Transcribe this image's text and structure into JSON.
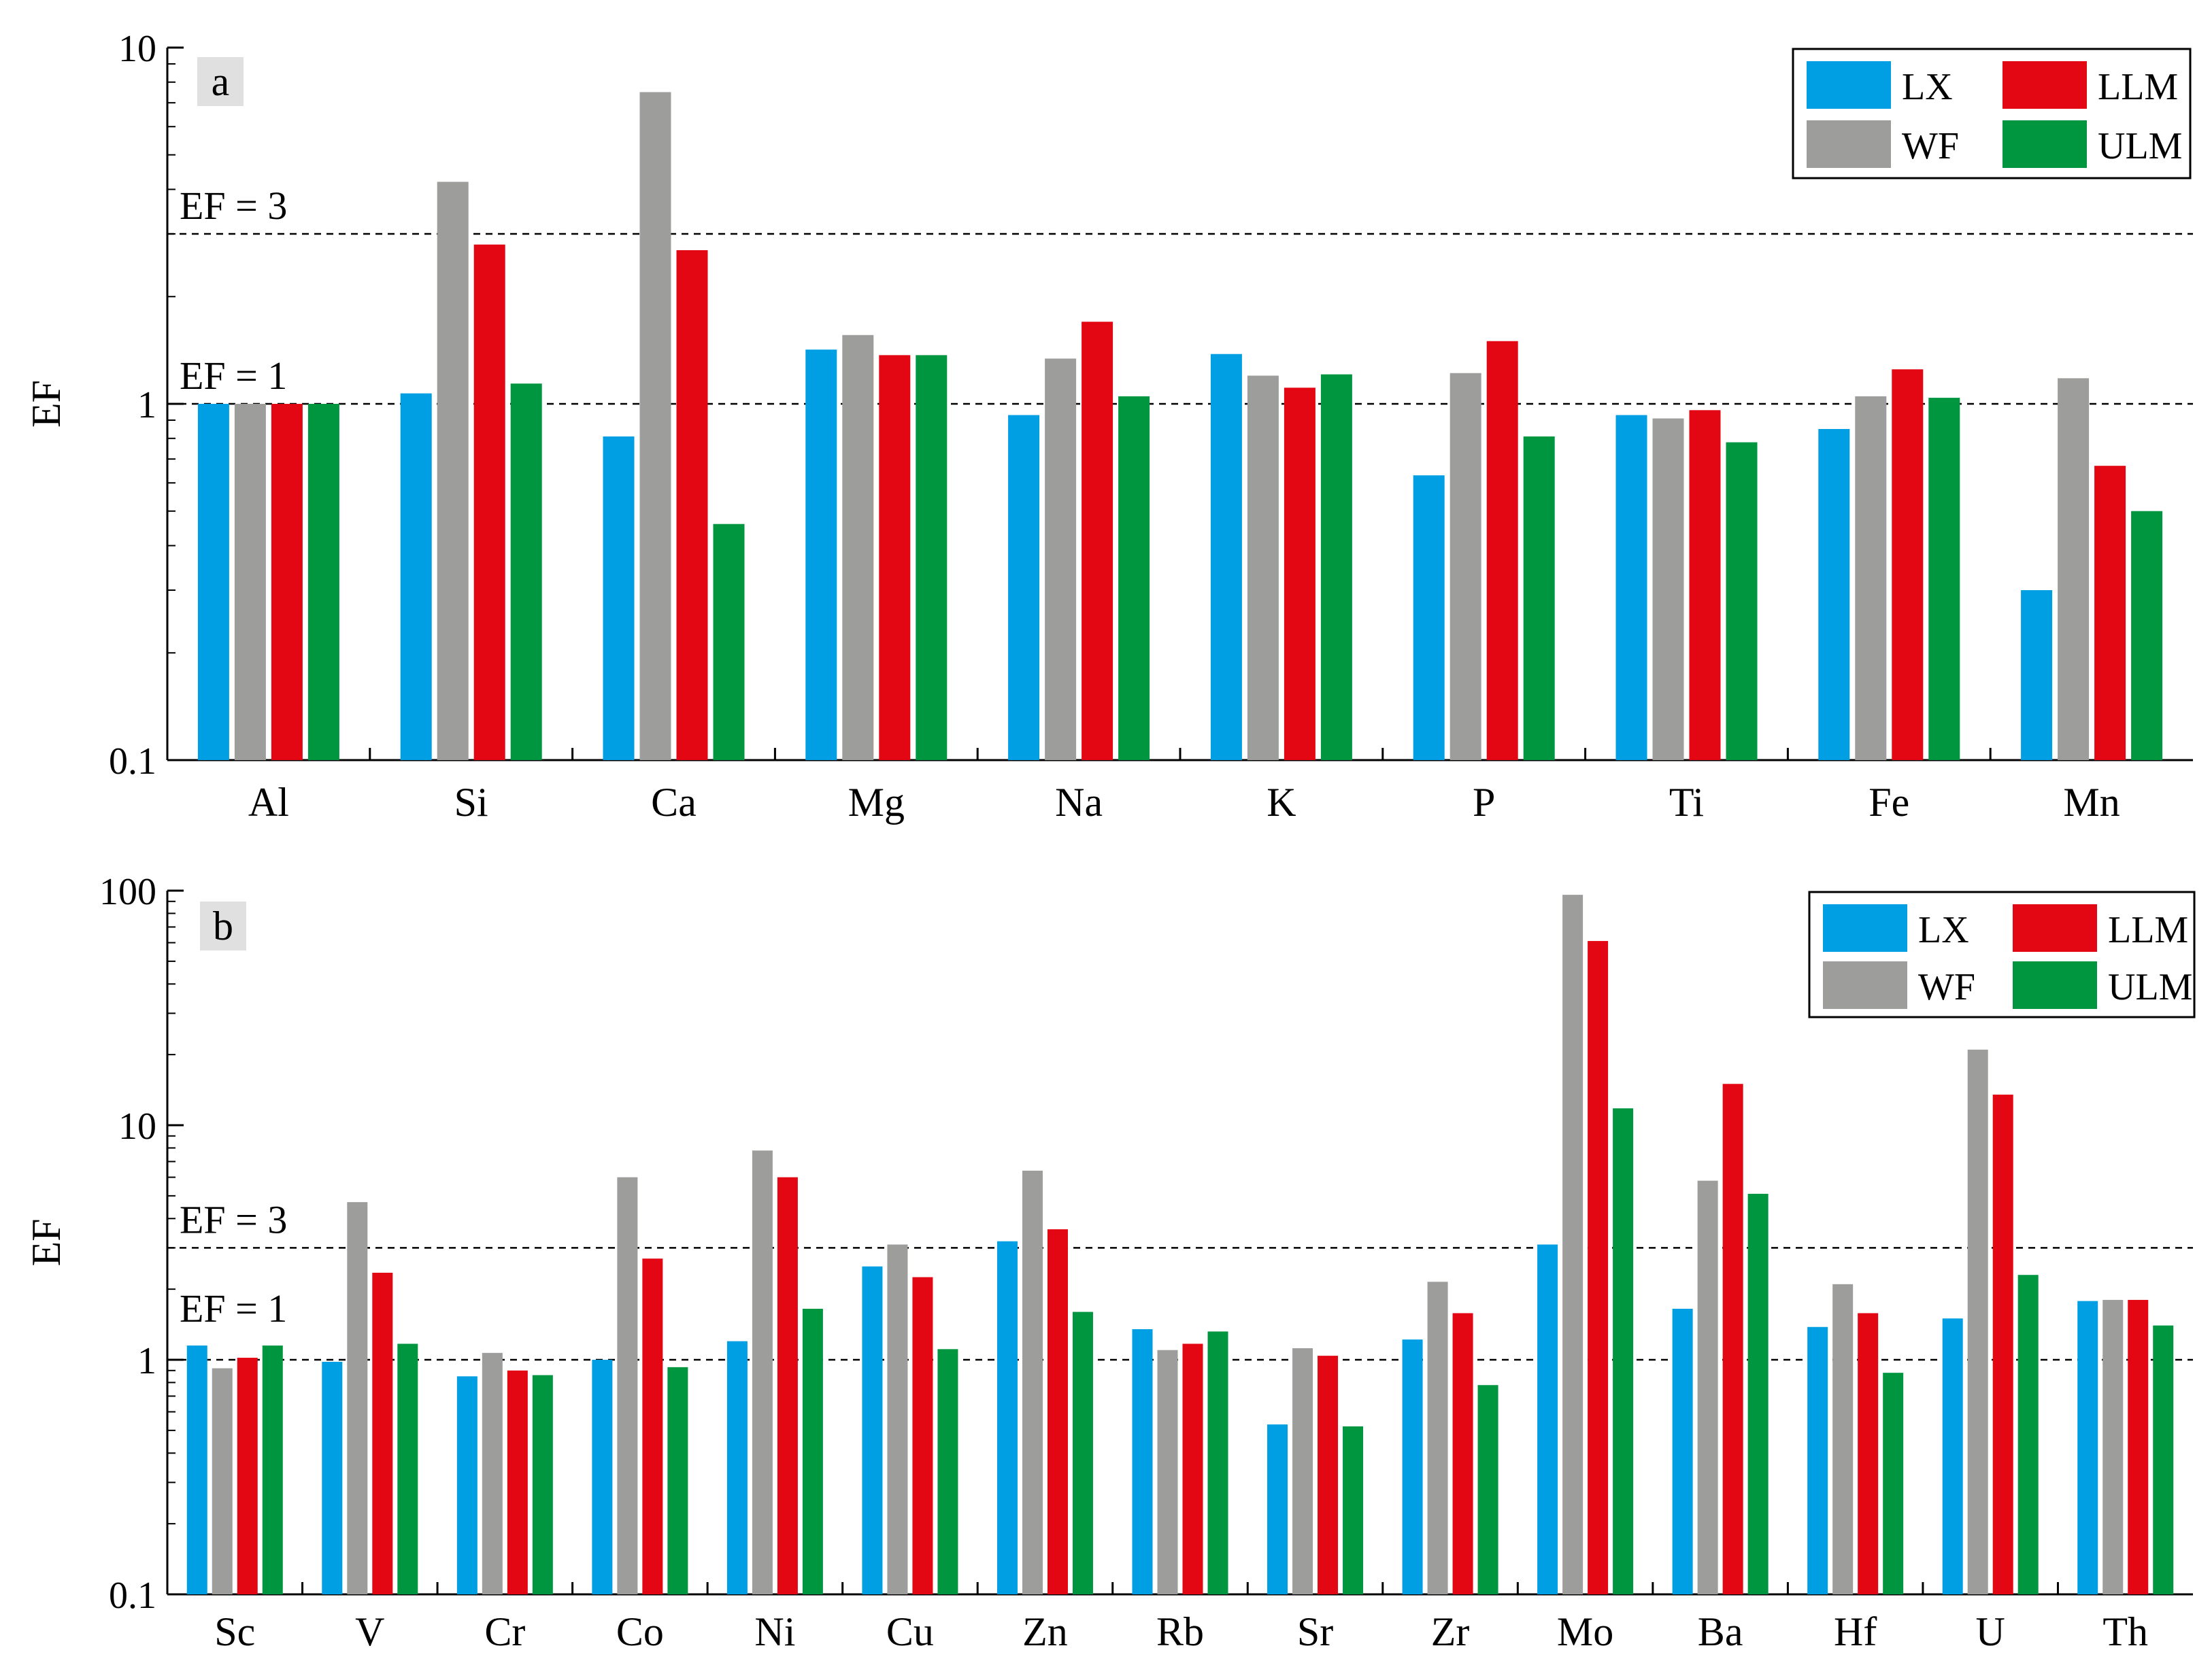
{
  "chart_data": [
    {
      "type": "bar",
      "panel_label": "a",
      "scale": "log",
      "ylabel": "EF",
      "ylim": [
        0.1,
        10
      ],
      "yticks": [
        0.1,
        1,
        10
      ],
      "ytick_labels": [
        "0.1",
        "1",
        "10"
      ],
      "categories": [
        "Al",
        "Si",
        "Ca",
        "Mg",
        "Na",
        "K",
        "P",
        "Ti",
        "Fe",
        "Mn"
      ],
      "series": [
        {
          "name": "LX",
          "color": "#009fe3",
          "values": [
            1.0,
            1.07,
            0.81,
            1.42,
            0.93,
            1.38,
            0.63,
            0.93,
            0.85,
            0.3
          ]
        },
        {
          "name": "WF",
          "color": "#9d9d9c",
          "values": [
            1.0,
            4.2,
            7.5,
            1.56,
            1.34,
            1.2,
            1.22,
            0.91,
            1.05,
            1.18
          ]
        },
        {
          "name": "LLM",
          "color": "#e30613",
          "values": [
            1.0,
            2.8,
            2.7,
            1.37,
            1.7,
            1.11,
            1.5,
            0.96,
            1.25,
            0.67
          ]
        },
        {
          "name": "ULM",
          "color": "#009640",
          "values": [
            1.0,
            1.14,
            0.46,
            1.37,
            1.05,
            1.21,
            0.81,
            0.78,
            1.04,
            0.5
          ]
        }
      ],
      "reference_lines": [
        {
          "value": 3,
          "label": "EF = 3"
        },
        {
          "value": 1,
          "label": "EF = 1"
        }
      ],
      "legend": "top-right"
    },
    {
      "type": "bar",
      "panel_label": "b",
      "scale": "log",
      "ylabel": "EF",
      "ylim": [
        0.1,
        100
      ],
      "yticks": [
        0.1,
        1,
        10,
        100
      ],
      "ytick_labels": [
        "0.1",
        "1",
        "10",
        "100"
      ],
      "categories": [
        "Sc",
        "V",
        "Cr",
        "Co",
        "Ni",
        "Cu",
        "Zn",
        "Rb",
        "Sr",
        "Zr",
        "Mo",
        "Ba",
        "Hf",
        "U",
        "Th"
      ],
      "series": [
        {
          "name": "LX",
          "color": "#009fe3",
          "values": [
            1.15,
            0.98,
            0.85,
            1.0,
            1.2,
            2.5,
            3.2,
            1.35,
            0.53,
            1.22,
            3.1,
            1.65,
            1.38,
            1.5,
            1.78
          ]
        },
        {
          "name": "WF",
          "color": "#9d9d9c",
          "values": [
            0.92,
            4.7,
            1.07,
            6.0,
            7.8,
            3.1,
            6.4,
            1.1,
            1.12,
            2.15,
            96,
            5.8,
            2.1,
            21,
            1.8
          ]
        },
        {
          "name": "LLM",
          "color": "#e30613",
          "values": [
            1.02,
            2.35,
            0.9,
            2.7,
            6.0,
            2.25,
            3.6,
            1.17,
            1.04,
            1.58,
            61,
            15,
            1.58,
            13.5,
            1.8
          ]
        },
        {
          "name": "ULM",
          "color": "#009640",
          "values": [
            1.15,
            1.17,
            0.86,
            0.93,
            1.65,
            1.11,
            1.6,
            1.32,
            0.52,
            0.78,
            11.8,
            5.1,
            0.88,
            2.3,
            1.4
          ]
        }
      ],
      "reference_lines": [
        {
          "value": 3,
          "label": "EF = 3"
        },
        {
          "value": 1,
          "label": "EF = 1"
        }
      ],
      "legend": "top-right"
    }
  ]
}
